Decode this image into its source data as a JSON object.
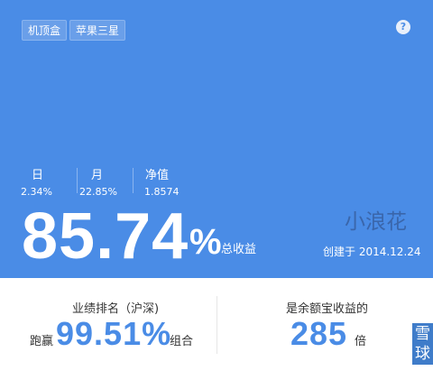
{
  "tags": [
    "机顶盒",
    "苹果三星"
  ],
  "help_icon": "?",
  "stats": {
    "day": {
      "label": "日",
      "value": "2.34%"
    },
    "month": {
      "label": "月",
      "value": "22.85%"
    },
    "nav": {
      "label": "净值",
      "value": "1.8574"
    }
  },
  "total_return": {
    "number": "85.74",
    "percent": "%",
    "label": "总收益"
  },
  "author": "小浪花",
  "created": "创建于 2014.12.24",
  "ranking": {
    "title": "业绩排名（沪深)",
    "prefix": "跑赢",
    "value": "99.51%",
    "suffix": "组合"
  },
  "yuebao": {
    "title": "是余额宝收益的",
    "value": "285",
    "suffix": "倍"
  },
  "watermark": [
    "雪",
    "球"
  ],
  "colors": {
    "accent": "#4a8ce6",
    "author": "#3a66ab"
  }
}
